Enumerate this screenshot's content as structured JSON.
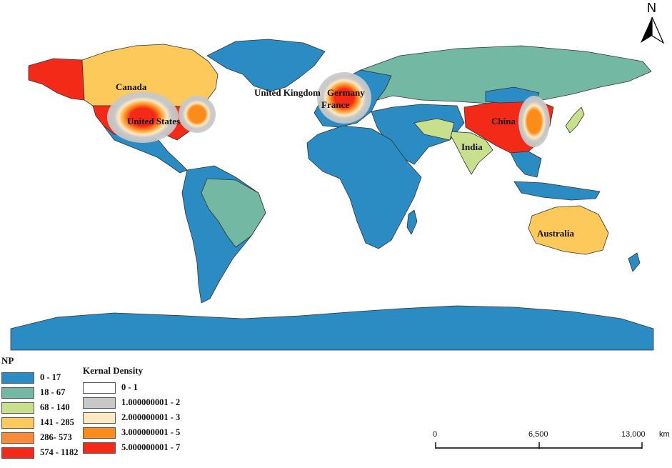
{
  "north_arrow": {
    "letter": "N"
  },
  "labels": {
    "canada": "Canada",
    "united_states": "United States",
    "united_kingdom": "United Kingdom",
    "germany": "Germany",
    "france": "France",
    "china": "China",
    "india": "India",
    "australia": "Australia"
  },
  "np_legend": {
    "title": "NP",
    "items": [
      {
        "label": "0 - 17",
        "color": "#2b8cc4"
      },
      {
        "label": "18 - 67",
        "color": "#72b8a3"
      },
      {
        "label": "68 - 140",
        "color": "#c8e08c"
      },
      {
        "label": "141 - 285",
        "color": "#fcc95a"
      },
      {
        "label": "286- 573",
        "color": "#f98a3a"
      },
      {
        "label": "574 - 1182",
        "color": "#f42a18"
      }
    ]
  },
  "kd_legend": {
    "title": "Kernal Density",
    "items": [
      {
        "label": "0 - 1",
        "color": "#ffffff"
      },
      {
        "label": "1.000000001 - 2",
        "color": "#c8c8c8"
      },
      {
        "label": "2.000000001 - 3",
        "color": "#fde9c1"
      },
      {
        "label": "3.000000001 - 5",
        "color": "#fb8c1a"
      },
      {
        "label": "5.000000001 - 7",
        "color": "#f42a18"
      }
    ]
  },
  "scale_bar": {
    "ticks": [
      "0",
      "6,500",
      "13,000"
    ],
    "unit": "km"
  }
}
